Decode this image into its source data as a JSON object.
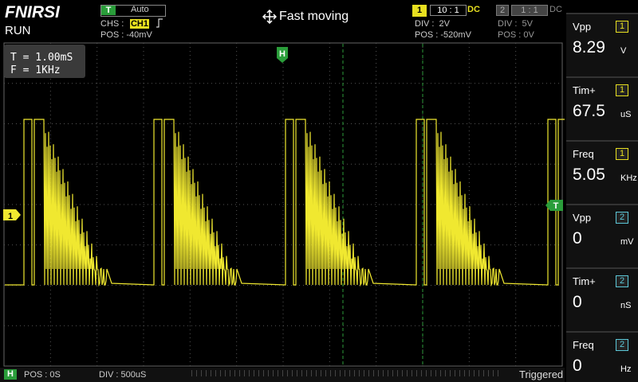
{
  "header": {
    "brand": "FNIRSI",
    "status": "RUN",
    "center": "Fast moving"
  },
  "trigger": {
    "badge": "T",
    "mode": "Auto",
    "source_label": "CHS :",
    "source": "CH1",
    "position": "POS : -40mV"
  },
  "channels": [
    {
      "badge": "1",
      "probe": "10 : 1",
      "coupling": "DC",
      "division": "DIV :  2V",
      "position": "POS : -520mV"
    },
    {
      "badge": "2",
      "probe": "1 : 1",
      "coupling": "DC",
      "division": "DIV :  5V",
      "position": "POS : 0V"
    }
  ],
  "overlay": {
    "period": "T = 1.00mS",
    "frequency": "F = 1KHz"
  },
  "markers": {
    "horizontal": "H",
    "channel": "1",
    "trigger": "T"
  },
  "measurements": [
    {
      "label": "Vpp",
      "channel": "1",
      "value": "8.29",
      "unit": "V"
    },
    {
      "label": "Tim+",
      "channel": "1",
      "value": "67.5",
      "unit": "uS"
    },
    {
      "label": "Freq",
      "channel": "1",
      "value": "5.05",
      "unit": "KHz"
    },
    {
      "label": "Vpp",
      "channel": "2",
      "value": "0",
      "unit": "mV"
    },
    {
      "label": "Tim+",
      "channel": "2",
      "value": "0",
      "unit": "nS"
    },
    {
      "label": "Freq",
      "channel": "2",
      "value": "0",
      "unit": "Hz"
    }
  ],
  "footer": {
    "badge": "H",
    "position": "POS : 0S",
    "division": "DIV : 500uS",
    "status": "Triggered"
  }
}
